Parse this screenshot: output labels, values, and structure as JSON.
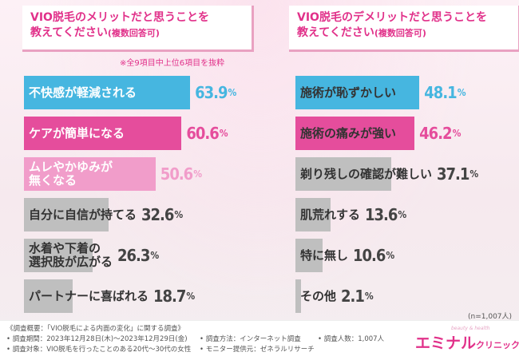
{
  "titles": {
    "left_main": "VIO脱毛のメリットだと思うことを",
    "left_main2": "教えてください",
    "left_sub": "(複数回答可)",
    "right_main": "VIO脱毛のデメリットだと思うことを",
    "right_main2": "教えてください",
    "right_sub": "(複数回答可)"
  },
  "note": "※全9項目中上位6項目を抜粋",
  "n_note": "(n=1,007人)",
  "colors": {
    "blue": "#46b6e0",
    "pink": "#e54d9c",
    "light_pink": "#f19dca",
    "gray": "#bfbfbf"
  },
  "chart_data": [
    {
      "type": "bar",
      "orientation": "horizontal",
      "xlim": [
        0,
        70
      ],
      "categories": [
        "不快感が軽減される",
        "ケアが簡単になる",
        "ムレやかゆみが\n無くなる",
        "自分に自信が持てる",
        "水着や下着の\n選択肢が広がる",
        "パートナーに喜ばれる"
      ],
      "values": [
        63.9,
        60.6,
        50.6,
        32.6,
        26.3,
        18.7
      ],
      "value_labels": [
        {
          "num": "63.9",
          "unit": "%"
        },
        {
          "num": "60.6",
          "unit": "%"
        },
        {
          "num": "50.6",
          "unit": "%"
        },
        {
          "num": "32.6",
          "unit": "%"
        },
        {
          "num": "26.3",
          "unit": "%"
        },
        {
          "num": "18.7",
          "unit": "%"
        }
      ],
      "bar_colors": [
        "#46b6e0",
        "#e54d9c",
        "#f19dca",
        "#bfbfbf",
        "#bfbfbf",
        "#bfbfbf"
      ],
      "value_colors": [
        "#46b6e0",
        "#e54d9c",
        "#f19dca",
        "#444444",
        "#444444",
        "#444444"
      ],
      "label_styles": [
        "light",
        "light",
        "light",
        "dark",
        "dark",
        "dark"
      ]
    },
    {
      "type": "bar",
      "orientation": "horizontal",
      "xlim": [
        0,
        70
      ],
      "categories": [
        "施術が恥ずかしい",
        "施術の痛みが強い",
        "剃り残しの確認が難しい",
        "肌荒れする",
        "特に無し",
        "その他"
      ],
      "values": [
        48.1,
        46.2,
        37.1,
        13.6,
        10.6,
        2.1
      ],
      "value_labels": [
        {
          "num": "48.1",
          "unit": "%"
        },
        {
          "num": "46.2",
          "unit": "%"
        },
        {
          "num": "37.1",
          "unit": "%"
        },
        {
          "num": "13.6",
          "unit": "%"
        },
        {
          "num": "10.6",
          "unit": "%"
        },
        {
          "num": "2.1",
          "unit": "%"
        }
      ],
      "bar_colors": [
        "#46b6e0",
        "#e54d9c",
        "#bfbfbf",
        "#bfbfbf",
        "#bfbfbf",
        "#bfbfbf"
      ],
      "value_colors": [
        "#46b6e0",
        "#e54d9c",
        "#444444",
        "#444444",
        "#444444",
        "#444444"
      ],
      "label_styles": [
        "dark",
        "dark",
        "dark",
        "dark",
        "dark",
        "dark"
      ]
    }
  ],
  "footer": {
    "survey_title": "《調査概要：「VIO脱毛による内面の変化」に関する調査》",
    "period": "• 調査期間：2023年12月28日(木)〜2023年12月29日(金)",
    "method": "• 調査方法：インターネット調査",
    "count": "• 調査人数：1,007人",
    "target": "• 調査対象：VIO脱毛を行ったことのある20代〜30代の女性",
    "provider": "• モニター提供元：ゼネラルリサーチ",
    "logo_main": "エミナル",
    "logo_small": "クリニック",
    "logo_tag": "beauty & health"
  }
}
